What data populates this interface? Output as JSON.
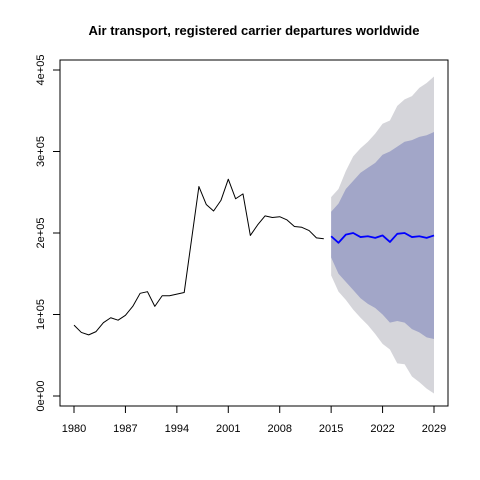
{
  "chart_data": {
    "type": "line",
    "title": "Air transport, registered carrier departures worldwide",
    "xlabel": "",
    "ylabel": "",
    "xlim": [
      1980,
      2029
    ],
    "ylim": [
      0,
      400000
    ],
    "x_ticks": [
      1980,
      1987,
      1994,
      2001,
      2008,
      2015,
      2022,
      2029
    ],
    "y_ticks": [
      {
        "value": 0,
        "label": "0e+00"
      },
      {
        "value": 100000,
        "label": "1e+05"
      },
      {
        "value": 200000,
        "label": "2e+05"
      },
      {
        "value": 300000,
        "label": "3e+05"
      },
      {
        "value": 400000,
        "label": "4e+05"
      }
    ],
    "grid": false,
    "legend": "none",
    "colors": {
      "history": "#000000",
      "forecast": "#0000ff",
      "band80": "#a2a6c8",
      "band95": "#d5d5da"
    },
    "series": [
      {
        "role": "history",
        "x": [
          1980,
          1981,
          1982,
          1983,
          1984,
          1985,
          1986,
          1987,
          1988,
          1989,
          1990,
          1991,
          1992,
          1993,
          1994,
          1995,
          1996,
          1997,
          1998,
          1999,
          2000,
          2001,
          2002,
          2003,
          2004,
          2005,
          2006,
          2007,
          2008,
          2009,
          2010,
          2011,
          2012,
          2013,
          2014
        ],
        "values": [
          87000,
          78000,
          75000,
          79000,
          90000,
          96000,
          93000,
          99000,
          110000,
          126000,
          128000,
          110000,
          123000,
          123000,
          125000,
          127000,
          192000,
          257000,
          235000,
          227000,
          240000,
          266000,
          242000,
          248000,
          197000,
          210000,
          221000,
          219000,
          220000,
          216000,
          208000,
          207000,
          203000,
          194000,
          193000
        ]
      },
      {
        "role": "forecast",
        "x": [
          2015,
          2016,
          2017,
          2018,
          2019,
          2020,
          2021,
          2022,
          2023,
          2024,
          2025,
          2026,
          2027,
          2028,
          2029
        ],
        "values": [
          196000,
          188000,
          198000,
          200000,
          195000,
          196000,
          194000,
          197000,
          189000,
          199000,
          200000,
          195000,
          196000,
          194000,
          197000
        ]
      }
    ],
    "intervals": [
      {
        "level": 95,
        "x": [
          2015,
          2016,
          2017,
          2018,
          2019,
          2020,
          2021,
          2022,
          2023,
          2024,
          2025,
          2026,
          2027,
          2028,
          2029
        ],
        "lower": [
          148000,
          128000,
          118000,
          106000,
          96000,
          87000,
          76000,
          64000,
          57000,
          40000,
          39000,
          24000,
          17000,
          9000,
          3000
        ],
        "upper": [
          244000,
          254000,
          276000,
          294000,
          304000,
          312000,
          322000,
          334000,
          338000,
          356000,
          364000,
          368000,
          378000,
          384000,
          392000
        ]
      },
      {
        "level": 80,
        "x": [
          2015,
          2016,
          2017,
          2018,
          2019,
          2020,
          2021,
          2022,
          2023,
          2024,
          2025,
          2026,
          2027,
          2028,
          2029
        ],
        "lower": [
          170000,
          150000,
          140000,
          130000,
          120000,
          113000,
          108000,
          100000,
          90000,
          92000,
          90000,
          82000,
          78000,
          72000,
          70000
        ],
        "upper": [
          226000,
          236000,
          254000,
          264000,
          274000,
          280000,
          286000,
          296000,
          300000,
          306000,
          312000,
          314000,
          318000,
          320000,
          324000
        ]
      }
    ]
  }
}
